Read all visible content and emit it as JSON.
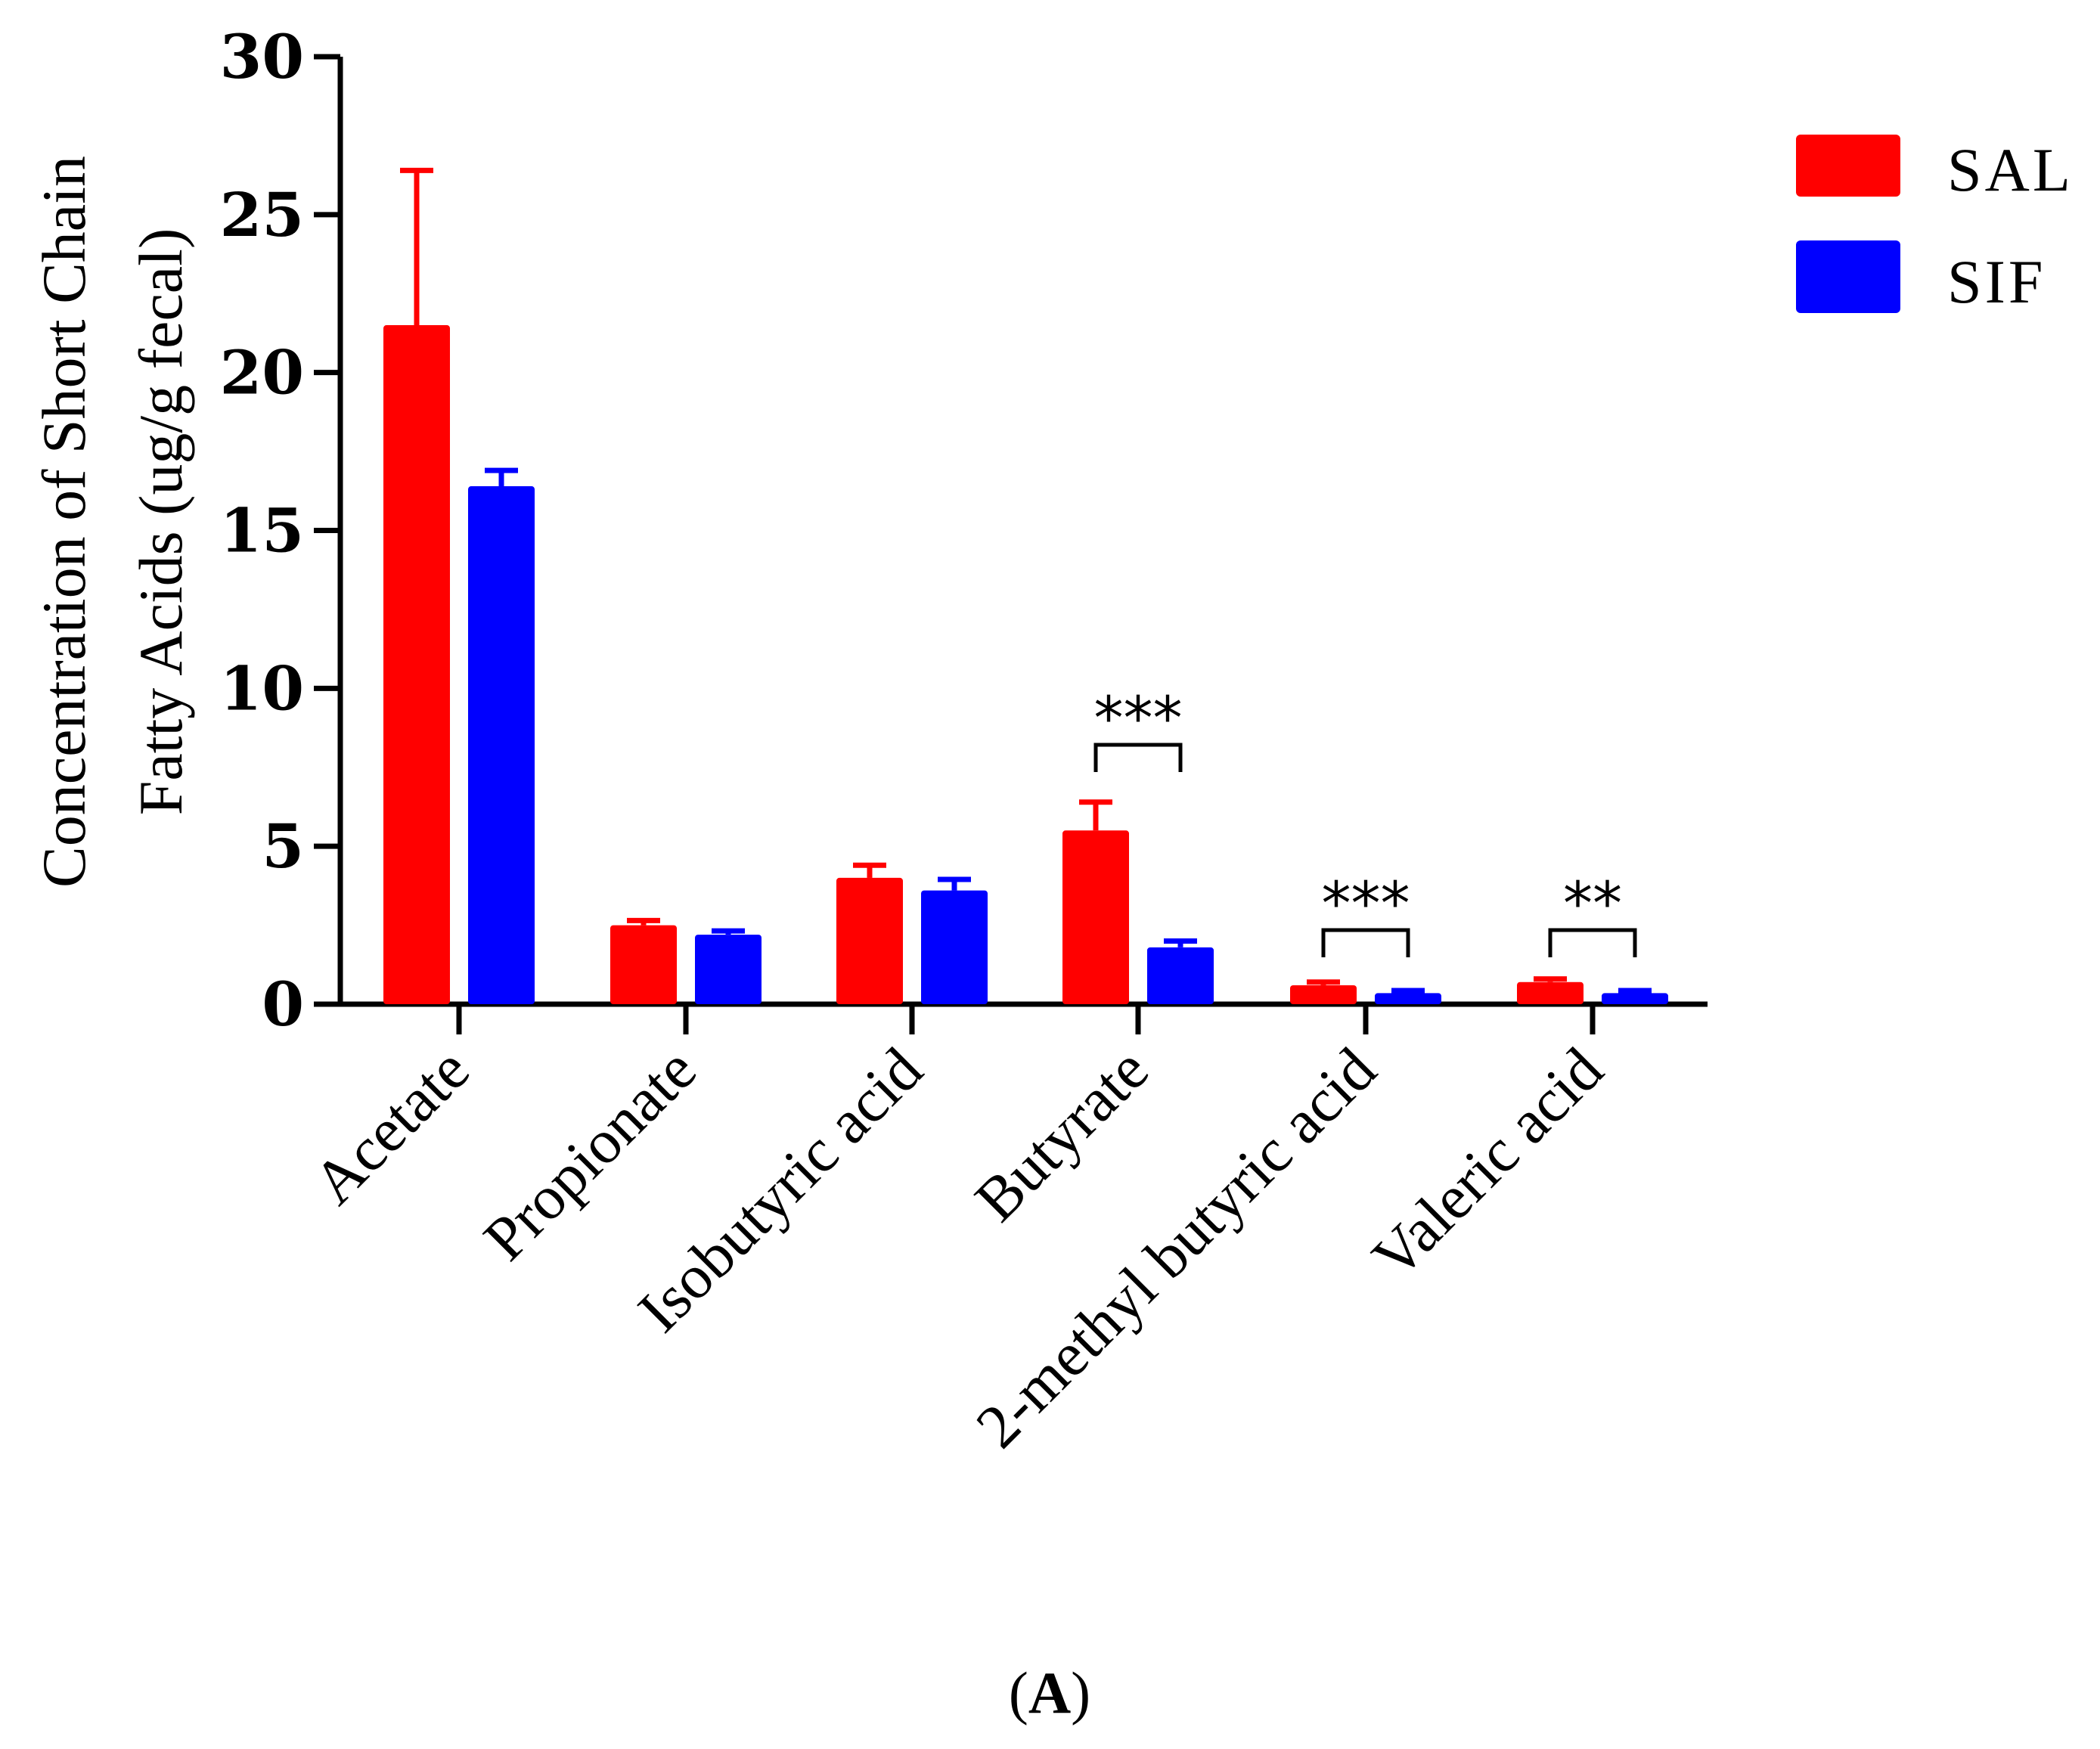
{
  "chart_data": {
    "type": "bar",
    "title": "",
    "ylabel_lines": [
      "Concentration of Short Chain",
      "Fatty Acids (ug/g fecal)"
    ],
    "xlabel": "",
    "ylim": [
      0,
      30
    ],
    "yticks": [
      0,
      5,
      10,
      15,
      20,
      25,
      30
    ],
    "grid": false,
    "legend_position": "top-right",
    "categories": [
      "Acetate",
      "Propionate",
      "Isobutyric acid",
      "Butyrate",
      "2-methyl butyric acid",
      "Valeric acid"
    ],
    "series": [
      {
        "name": "SAL",
        "color": "#ff0000",
        "values": [
          21.5,
          2.5,
          4.0,
          5.5,
          0.6,
          0.7
        ],
        "errors": [
          4.9,
          0.15,
          0.4,
          0.9,
          0.1,
          0.1
        ]
      },
      {
        "name": "SIF",
        "color": "#0000ff",
        "values": [
          16.4,
          2.2,
          3.6,
          1.8,
          0.35,
          0.35
        ],
        "errors": [
          0.5,
          0.12,
          0.35,
          0.2,
          0.08,
          0.08
        ]
      }
    ],
    "annotations": [
      {
        "category_index": 3,
        "label": "***"
      },
      {
        "category_index": 4,
        "label": "***"
      },
      {
        "category_index": 5,
        "label": "**"
      }
    ]
  },
  "panel_label": {
    "open": "(",
    "letter": "A",
    "close": ")"
  }
}
